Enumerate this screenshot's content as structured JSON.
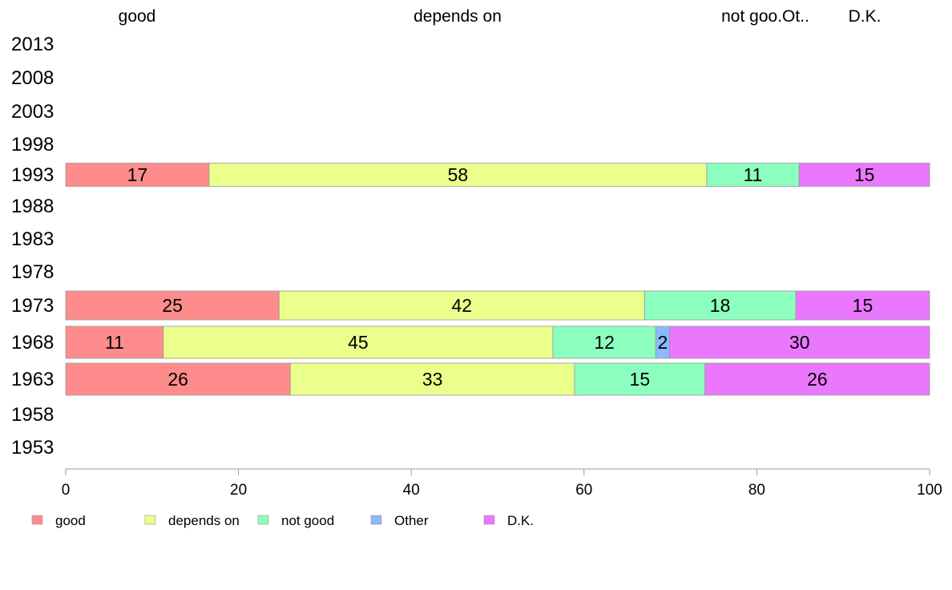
{
  "chart_data": {
    "type": "bar",
    "orientation": "horizontal",
    "stacked": true,
    "title": "",
    "xlabel": "",
    "ylabel": "",
    "xlim": [
      0,
      100
    ],
    "x_ticks": [
      "0",
      "20",
      "40",
      "60",
      "80",
      "100"
    ],
    "top_labels": [
      "good",
      "depends on",
      "not goo.Ot..",
      "D.K."
    ],
    "categories": [
      "2013",
      "2008",
      "2003",
      "1998",
      "1993",
      "1988",
      "1983",
      "1978",
      "1973",
      "1968",
      "1963",
      "1958",
      "1953"
    ],
    "series": [
      {
        "name": "good",
        "color": "#ff8c8c",
        "values": [
          null,
          null,
          null,
          null,
          16.6,
          null,
          null,
          null,
          24.7,
          11.3,
          26.0,
          null,
          null
        ],
        "labels": [
          "",
          "",
          "",
          "",
          "17",
          "",
          "",
          "",
          "25",
          "11",
          "26",
          "",
          ""
        ]
      },
      {
        "name": "depends on",
        "color": "#eaff8c",
        "values": [
          null,
          null,
          null,
          null,
          57.6,
          null,
          null,
          null,
          42.3,
          45.1,
          32.9,
          null,
          null
        ],
        "labels": [
          "",
          "",
          "",
          "",
          "58",
          "",
          "",
          "",
          "42",
          "45",
          "33",
          "",
          ""
        ]
      },
      {
        "name": "not good",
        "color": "#8cffbe",
        "values": [
          null,
          null,
          null,
          null,
          10.7,
          null,
          null,
          null,
          17.5,
          11.9,
          15.1,
          null,
          null
        ],
        "labels": [
          "",
          "",
          "",
          "",
          "11",
          "",
          "",
          "",
          "18",
          "12",
          "15",
          "",
          ""
        ]
      },
      {
        "name": "Other",
        "color": "#8cb8ff",
        "values": [
          null,
          null,
          null,
          null,
          0,
          null,
          null,
          null,
          0,
          1.6,
          0,
          null,
          null
        ],
        "labels": [
          "",
          "",
          "",
          "",
          "",
          "",
          "",
          "",
          "",
          "2",
          "",
          "",
          ""
        ]
      },
      {
        "name": "D.K.",
        "color": "#ea78ff",
        "values": [
          null,
          null,
          null,
          null,
          15.1,
          null,
          null,
          null,
          15.5,
          30.1,
          26.0,
          null,
          null
        ],
        "labels": [
          "",
          "",
          "",
          "",
          "15",
          "",
          "",
          "",
          "15",
          "30",
          "26",
          "",
          ""
        ]
      }
    ],
    "legend": {
      "position": "bottom",
      "entries": [
        "good",
        "depends on",
        "not good",
        "Other",
        "D.K."
      ]
    },
    "grid": false
  }
}
